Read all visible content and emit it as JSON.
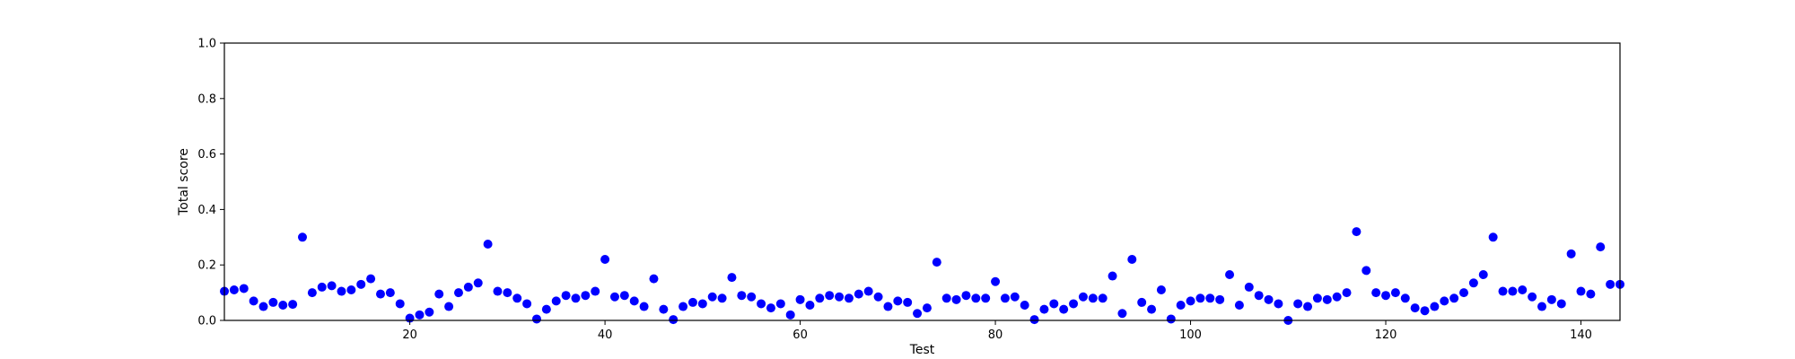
{
  "chart_data": {
    "type": "scatter",
    "xlabel": "Test",
    "ylabel": "Total score",
    "xlim": [
      1,
      144
    ],
    "ylim": [
      0.0,
      1.0
    ],
    "xticks": [
      20,
      40,
      60,
      80,
      100,
      120,
      140
    ],
    "yticks": [
      0.0,
      0.2,
      0.4,
      0.6,
      0.8,
      1.0
    ],
    "xtick_labels": [
      "20",
      "40",
      "60",
      "80",
      "100",
      "120",
      "140"
    ],
    "ytick_labels": [
      "0.0",
      "0.2",
      "0.4",
      "0.6",
      "0.8",
      "1.0"
    ],
    "grid": false,
    "marker_color": "#0000ff",
    "x": [
      1,
      2,
      3,
      4,
      5,
      6,
      7,
      8,
      9,
      10,
      11,
      12,
      13,
      14,
      15,
      16,
      17,
      18,
      19,
      20,
      21,
      22,
      23,
      24,
      25,
      26,
      27,
      28,
      29,
      30,
      31,
      32,
      33,
      34,
      35,
      36,
      37,
      38,
      39,
      40,
      41,
      42,
      43,
      44,
      45,
      46,
      47,
      48,
      49,
      50,
      51,
      52,
      53,
      54,
      55,
      56,
      57,
      58,
      59,
      60,
      61,
      62,
      63,
      64,
      65,
      66,
      67,
      68,
      69,
      70,
      71,
      72,
      73,
      74,
      75,
      76,
      77,
      78,
      79,
      80,
      81,
      82,
      83,
      84,
      85,
      86,
      87,
      88,
      89,
      90,
      91,
      92,
      93,
      94,
      95,
      96,
      97,
      98,
      99,
      100,
      101,
      102,
      103,
      104,
      105,
      106,
      107,
      108,
      109,
      110,
      111,
      112,
      113,
      114,
      115,
      116,
      117,
      118,
      119,
      120,
      121,
      122,
      123,
      124,
      125,
      126,
      127,
      128,
      129,
      130,
      131,
      132,
      133,
      134,
      135,
      136,
      137,
      138,
      139,
      140,
      141,
      142,
      143,
      144
    ],
    "y": [
      0.105,
      0.11,
      0.115,
      0.07,
      0.05,
      0.065,
      0.055,
      0.058,
      0.3,
      0.1,
      0.12,
      0.125,
      0.105,
      0.11,
      0.13,
      0.15,
      0.095,
      0.1,
      0.06,
      0.008,
      0.02,
      0.03,
      0.095,
      0.05,
      0.1,
      0.12,
      0.135,
      0.275,
      0.105,
      0.1,
      0.08,
      0.06,
      0.005,
      0.04,
      0.07,
      0.09,
      0.08,
      0.09,
      0.105,
      0.22,
      0.085,
      0.09,
      0.07,
      0.05,
      0.15,
      0.04,
      0.003,
      0.05,
      0.065,
      0.06,
      0.085,
      0.08,
      0.155,
      0.09,
      0.085,
      0.06,
      0.045,
      0.06,
      0.02,
      0.075,
      0.055,
      0.08,
      0.09,
      0.085,
      0.08,
      0.095,
      0.105,
      0.085,
      0.05,
      0.07,
      0.065,
      0.025,
      0.045,
      0.21,
      0.08,
      0.075,
      0.09,
      0.08,
      0.08,
      0.14,
      0.08,
      0.085,
      0.055,
      0.003,
      0.04,
      0.06,
      0.04,
      0.06,
      0.085,
      0.08,
      0.08,
      0.16,
      0.025,
      0.22,
      0.065,
      0.04,
      0.11,
      0.005,
      0.055,
      0.07,
      0.08,
      0.08,
      0.075,
      0.165,
      0.055,
      0.12,
      0.09,
      0.075,
      0.06,
      0.0,
      0.06,
      0.05,
      0.08,
      0.075,
      0.085,
      0.1,
      0.32,
      0.18,
      0.1,
      0.09,
      0.1,
      0.08,
      0.045,
      0.035,
      0.05,
      0.07,
      0.08,
      0.1,
      0.135,
      0.165,
      0.3,
      0.105,
      0.105,
      0.11,
      0.085,
      0.05,
      0.075,
      0.06,
      0.24,
      0.105,
      0.095,
      0.265,
      0.13,
      0.13
    ]
  }
}
